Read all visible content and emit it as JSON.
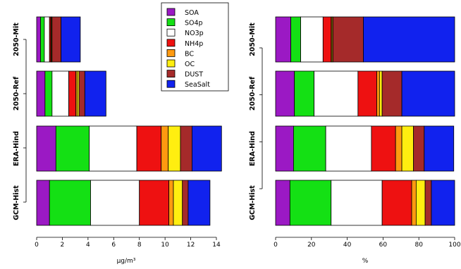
{
  "chart_data": [
    {
      "type": "bar",
      "orientation": "horizontal",
      "stacked": true,
      "xlabel": "µg/m³",
      "xlim": [
        0,
        14
      ],
      "xticks": [
        "0",
        "2",
        "4",
        "6",
        "8",
        "10",
        "12",
        "14"
      ],
      "categories": [
        "GCM-Hist",
        "ERA-Hind",
        "2050-Ref",
        "2050-Mit"
      ],
      "series": [
        {
          "name": "SOA",
          "color": "#9b19c4",
          "values": [
            1.0,
            1.5,
            0.65,
            0.3
          ]
        },
        {
          "name": "SO4p",
          "color": "#14e014",
          "values": [
            3.2,
            2.6,
            0.55,
            0.3
          ]
        },
        {
          "name": "NO3p",
          "color": "#ffffff",
          "values": [
            3.8,
            3.7,
            1.3,
            0.4
          ]
        },
        {
          "name": "NH4p",
          "color": "#ee1111",
          "values": [
            2.3,
            1.9,
            0.55,
            0.1
          ]
        },
        {
          "name": "BC",
          "color": "#ff9a10",
          "values": [
            0.35,
            0.55,
            0.1,
            0.05
          ]
        },
        {
          "name": "OC",
          "color": "#ffee10",
          "values": [
            0.7,
            0.95,
            0.15,
            0.05
          ]
        },
        {
          "name": "DUST",
          "color": "#a52a2a",
          "values": [
            0.45,
            0.9,
            0.45,
            0.7
          ]
        },
        {
          "name": "SeaSalt",
          "color": "#1122ee",
          "values": [
            1.7,
            2.3,
            1.65,
            1.5
          ]
        }
      ],
      "legend": {
        "position": "top-right",
        "entries": [
          "SOA",
          "SO4p",
          "NO3p",
          "NH4p",
          "BC",
          "OC",
          "DUST",
          "SeaSalt"
        ]
      }
    },
    {
      "type": "bar",
      "orientation": "horizontal",
      "stacked": true,
      "xlabel": "%",
      "xlim": [
        0,
        100
      ],
      "xticks": [
        "0",
        "20",
        "40",
        "60",
        "80",
        "100"
      ],
      "categories": [
        "GCM-Hist",
        "ERA-Hind",
        "2050-Ref",
        "2050-Mit"
      ],
      "series": [
        {
          "name": "SOA",
          "color": "#9b19c4",
          "values": [
            8,
            10,
            10.5,
            8.5
          ]
        },
        {
          "name": "SO4p",
          "color": "#14e014",
          "values": [
            23,
            18,
            11,
            5.5
          ]
        },
        {
          "name": "NO3p",
          "color": "#ffffff",
          "values": [
            28.5,
            25.5,
            24.5,
            12.5
          ]
        },
        {
          "name": "NH4p",
          "color": "#ee1111",
          "values": [
            16.5,
            13.5,
            10.5,
            4.5
          ]
        },
        {
          "name": "BC",
          "color": "#ff9a10",
          "values": [
            2.5,
            3.5,
            1.5,
            0.5
          ]
        },
        {
          "name": "OC",
          "color": "#ffee10",
          "values": [
            5,
            6.5,
            1.5,
            0.5
          ]
        },
        {
          "name": "DUST",
          "color": "#a52a2a",
          "values": [
            3.5,
            6,
            11,
            17
          ]
        },
        {
          "name": "SeaSalt",
          "color": "#1122ee",
          "values": [
            13,
            16.5,
            29.5,
            51
          ]
        }
      ]
    }
  ]
}
